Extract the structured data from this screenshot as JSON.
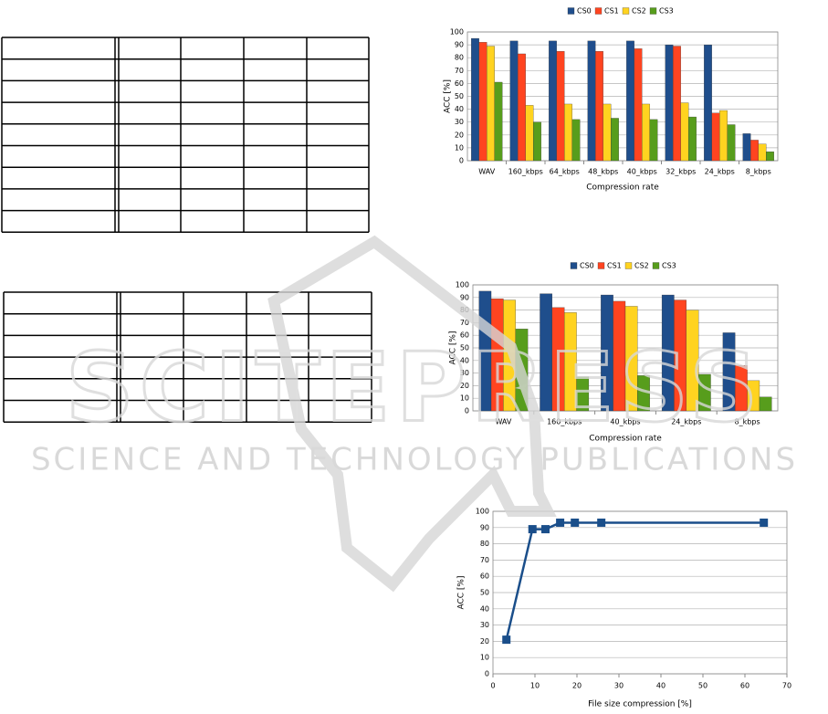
{
  "watermark": {
    "title": "SCITEPRESS",
    "subtitle": "SCIENCE AND TECHNOLOGY PUBLICATIONS"
  },
  "chart_data": [
    {
      "type": "bar",
      "x_label": "Compression rate",
      "y_label": "ACC [%]",
      "legend": "top",
      "grid": true,
      "categories": [
        "WAV",
        "160_kbps",
        "64_kbps",
        "48_kbps",
        "40_kbps",
        "32_kbps",
        "24_kbps",
        "8_kbps"
      ],
      "series": [
        {
          "name": "CS0",
          "color": "#1f4e8c",
          "values": [
            95,
            93,
            93,
            93,
            93,
            90,
            90,
            21
          ]
        },
        {
          "name": "CS1",
          "color": "#ff4420",
          "values": [
            92,
            83,
            85,
            85,
            87,
            89,
            37,
            16
          ]
        },
        {
          "name": "CS2",
          "color": "#ffd320",
          "values": [
            89,
            43,
            44,
            44,
            44,
            45,
            39,
            13
          ]
        },
        {
          "name": "CS3",
          "color": "#579d1c",
          "values": [
            61,
            30,
            32,
            33,
            32,
            34,
            28,
            7
          ]
        }
      ],
      "ylim": [
        0,
        100
      ],
      "yticks": [
        0,
        10,
        20,
        30,
        40,
        50,
        60,
        70,
        80,
        90,
        100
      ]
    },
    {
      "type": "bar",
      "x_label": "Compression rate",
      "y_label": "ACC [%]",
      "legend": "top",
      "grid": true,
      "categories": [
        "WAV",
        "160_kbps",
        "40_kbps",
        "24_kbps",
        "8_kbps"
      ],
      "series": [
        {
          "name": "CS0",
          "color": "#1f4e8c",
          "values": [
            95,
            93,
            92,
            92,
            62
          ]
        },
        {
          "name": "CS1",
          "color": "#ff4420",
          "values": [
            89,
            82,
            87,
            88,
            36
          ]
        },
        {
          "name": "CS2",
          "color": "#ffd320",
          "values": [
            88,
            78,
            83,
            80,
            24
          ]
        },
        {
          "name": "CS3",
          "color": "#579d1c",
          "values": [
            65,
            27,
            28,
            29,
            11
          ]
        }
      ],
      "ylim": [
        0,
        100
      ],
      "yticks": [
        0,
        10,
        20,
        30,
        40,
        50,
        60,
        70,
        80,
        90,
        100
      ]
    },
    {
      "type": "line",
      "x_label": "File size compression [%]",
      "y_label": "ACC [%]",
      "grid": true,
      "x": [
        3.2,
        9.4,
        12.5,
        16,
        19.5,
        25.8,
        64.5
      ],
      "series": [
        {
          "color": "#1a4e8a",
          "values": [
            21,
            89,
            89,
            93,
            93,
            93,
            93
          ]
        }
      ],
      "xlim": [
        0,
        70
      ],
      "xticks": [
        0,
        10,
        20,
        30,
        40,
        50,
        60,
        70
      ],
      "ylim": [
        0,
        100
      ],
      "yticks": [
        0,
        10,
        20,
        30,
        40,
        50,
        60,
        70,
        80,
        90,
        100
      ]
    }
  ]
}
